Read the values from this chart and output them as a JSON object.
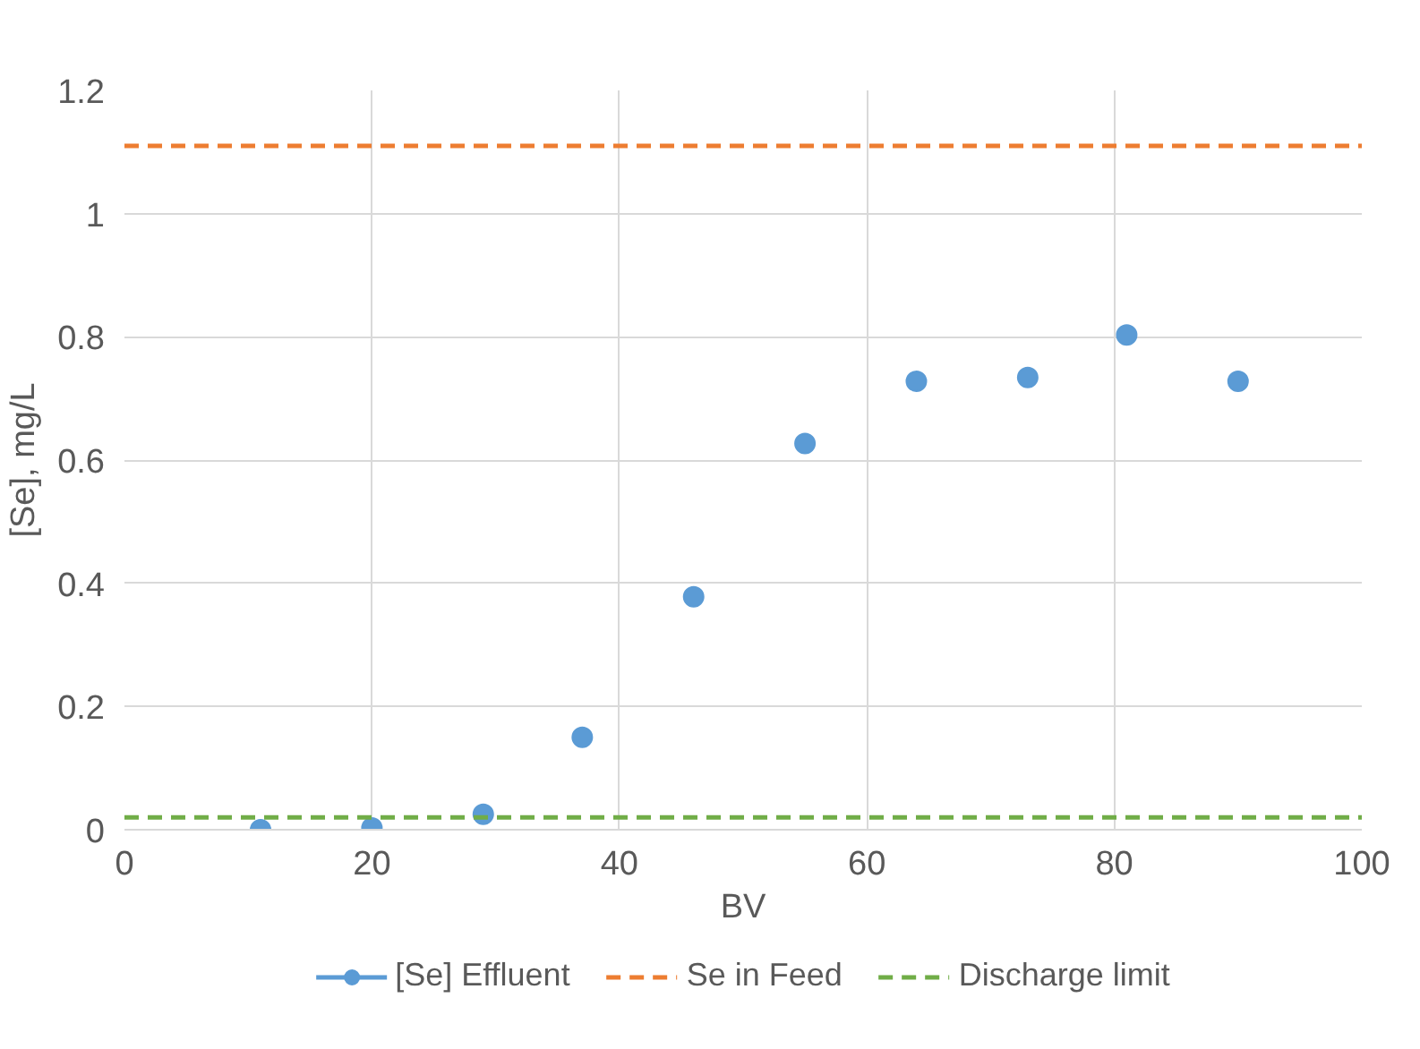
{
  "chart_data": {
    "type": "scatter",
    "xlabel": "BV",
    "ylabel": "[Se], mg/L",
    "xlim": [
      0,
      100
    ],
    "xticks": [
      0,
      20,
      40,
      60,
      80,
      100
    ],
    "ylim": [
      0,
      1.2
    ],
    "yticks": [
      0,
      0.2,
      0.4,
      0.6,
      0.8,
      1,
      1.2
    ],
    "grid": true,
    "legend": "bottom",
    "series": [
      {
        "name": "[Se] Effluent",
        "color": "#5b9bd5",
        "marker": "circle",
        "x": [
          11,
          20,
          29,
          37,
          46,
          55,
          64,
          73,
          81,
          90
        ],
        "values": [
          0,
          0.003,
          0.025,
          0.15,
          0.378,
          0.627,
          0.728,
          0.734,
          0.803,
          0.728
        ]
      },
      {
        "name": "Se in Feed",
        "color": "#ed7d31",
        "type": "line",
        "line_style": "dashed",
        "x": [
          0,
          100
        ],
        "values": [
          1.11,
          1.11
        ]
      },
      {
        "name": "Discharge limit",
        "color": "#70ad47",
        "type": "line",
        "line_style": "dashed",
        "x": [
          0,
          100
        ],
        "values": [
          0.02,
          0.02
        ]
      }
    ]
  }
}
